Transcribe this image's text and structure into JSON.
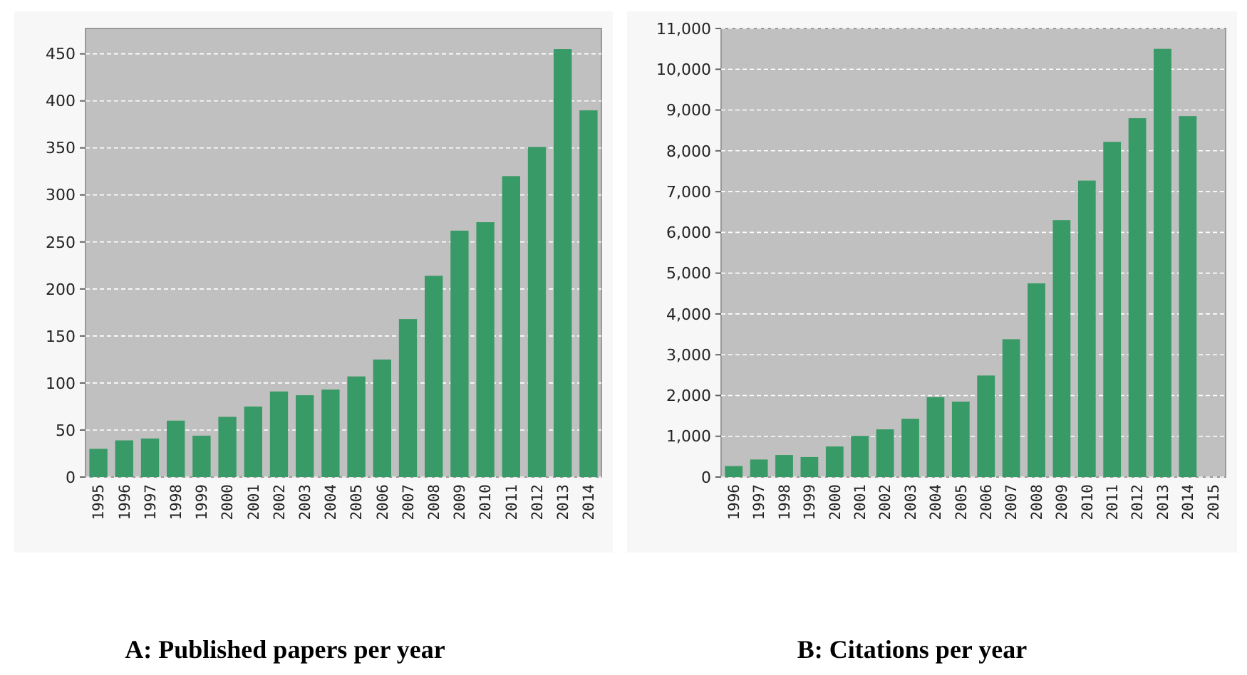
{
  "chart_data": [
    {
      "type": "bar",
      "title": "A: Published papers per year",
      "categories": [
        "1995",
        "1996",
        "1997",
        "1998",
        "1999",
        "2000",
        "2001",
        "2002",
        "2003",
        "2004",
        "2005",
        "2006",
        "2007",
        "2008",
        "2009",
        "2010",
        "2011",
        "2012",
        "2013",
        "2014"
      ],
      "values": [
        30,
        39,
        41,
        60,
        44,
        64,
        75,
        91,
        87,
        93,
        107,
        125,
        168,
        214,
        262,
        271,
        320,
        351,
        455,
        390
      ],
      "color": "#389a66",
      "ylim": [
        0,
        477
      ],
      "yticks": [
        0,
        50,
        100,
        150,
        200,
        250,
        300,
        350,
        400,
        450
      ],
      "grid": "y"
    },
    {
      "type": "bar",
      "title": "B: Citations per year",
      "categories": [
        "1996",
        "1997",
        "1998",
        "1999",
        "2000",
        "2001",
        "2002",
        "2003",
        "2004",
        "2005",
        "2006",
        "2007",
        "2008",
        "2009",
        "2010",
        "2011",
        "2012",
        "2013",
        "2014",
        "2015"
      ],
      "values": [
        270,
        430,
        540,
        490,
        750,
        1010,
        1170,
        1430,
        1960,
        1850,
        2490,
        3380,
        4750,
        6300,
        7270,
        8220,
        8800,
        10500,
        8850,
        null
      ],
      "color": "#389a66",
      "ylim": [
        0,
        11000
      ],
      "yticks": [
        {
          "value": 0,
          "label": "0"
        },
        {
          "value": 1000,
          "label": "1,000"
        },
        {
          "value": 2000,
          "label": "2,000"
        },
        {
          "value": 3000,
          "label": "3,000"
        },
        {
          "value": 4000,
          "label": "4,000"
        },
        {
          "value": 5000,
          "label": "5,000"
        },
        {
          "value": 6000,
          "label": "6,000"
        },
        {
          "value": 7000,
          "label": "7,000"
        },
        {
          "value": 8000,
          "label": "8,000"
        },
        {
          "value": 9000,
          "label": "9,000"
        },
        {
          "value": 10000,
          "label": "10,000"
        },
        {
          "value": 11000,
          "label": "11,000"
        }
      ],
      "grid": "y"
    }
  ]
}
